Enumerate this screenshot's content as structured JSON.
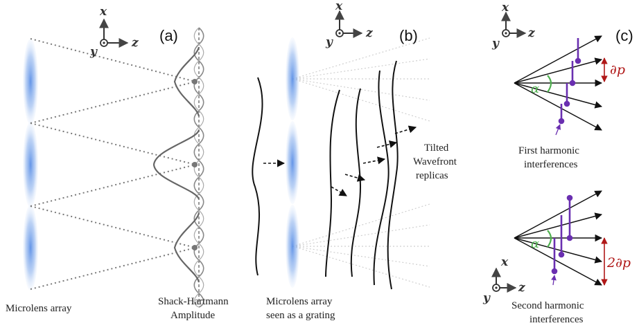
{
  "panels": {
    "a": {
      "label": "(a)",
      "caption_left": "Microlens array",
      "caption_right": [
        "Shack-Hartmann",
        "Amplitude"
      ]
    },
    "b": {
      "label": "(b)",
      "caption_bottom": [
        "Microlens array",
        "seen as a grating"
      ],
      "caption_right": [
        "Tilted",
        "Wavefront",
        "replicas"
      ]
    },
    "c": {
      "label": "(c)",
      "angle_symbol": "α",
      "first": {
        "caption": [
          "First harmonic",
          "interferences"
        ],
        "period": "∂p"
      },
      "second": {
        "caption": [
          "Second harmonic",
          "interferences"
        ],
        "period": "2∂p"
      }
    }
  },
  "axes": {
    "x": "x",
    "y": "y",
    "z": "z"
  },
  "colors": {
    "lens": "#5b8fe6",
    "beam": "#777777",
    "wave": "#111111",
    "interference": "#6a2fb0",
    "angle": "#4fb04f",
    "period": "#b01818"
  }
}
